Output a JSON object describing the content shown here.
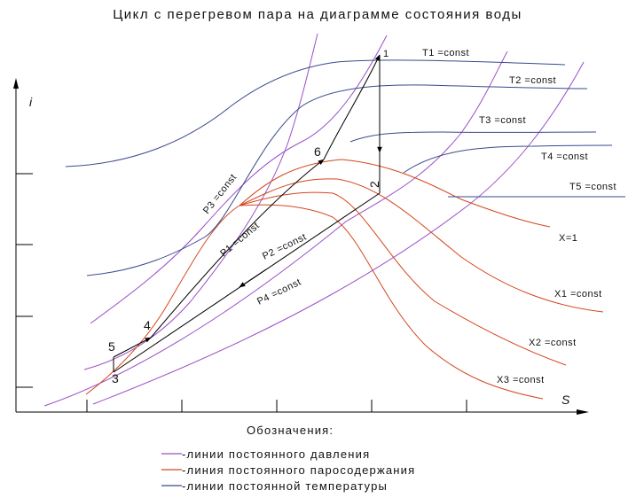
{
  "title": "Цикл с перегревом пара на диаграмме состояния воды",
  "axes": {
    "y_label": "i",
    "x_label": "S"
  },
  "points": [
    "1",
    "2",
    "3",
    "4",
    "5",
    "6"
  ],
  "curves": {
    "isotherms": [
      "T1 =const",
      "T2 =const",
      "T3 =const",
      "T4 =const",
      "T5 =const"
    ],
    "isobars": [
      "P3 =const",
      "P1 =const",
      "P2 =const",
      "P4 =const"
    ],
    "dryness": [
      "X=1",
      "X1 =const",
      "X2 =const",
      "X3 =const"
    ]
  },
  "legend": {
    "heading": "Обозначения:",
    "items": [
      {
        "text": "-линии постоянного давления",
        "color": "#9a4fc8"
      },
      {
        "text": "-линия постоянного паросодержания",
        "color": "#d4461c"
      },
      {
        "text": "-линии постоянной температуры",
        "color": "#3a4a8c"
      }
    ]
  },
  "colors": {
    "pressure": "#9a4fc8",
    "dryness": "#d4461c",
    "temperature": "#3a4a8c"
  }
}
